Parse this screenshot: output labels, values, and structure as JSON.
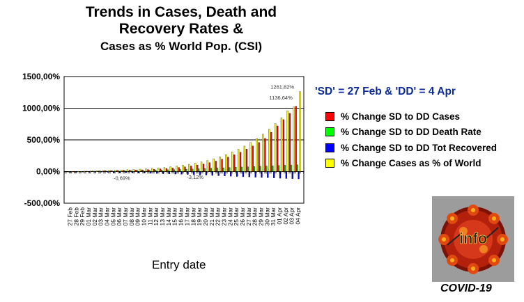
{
  "chart_data": {
    "type": "bar",
    "title": "Trends in Cases, Death and",
    "title_line2": "Recovery Rates &",
    "subtitle": "Cases as % World Pop. (CSI)",
    "xlabel": "Entry date",
    "ylabel": "",
    "ylim": [
      -500,
      1500
    ],
    "yticks": [
      -500,
      0,
      500,
      1000,
      1500
    ],
    "ytick_labels": [
      "-500,00%",
      "0,00%",
      "500,00%",
      "1000,00%",
      "1500,00%"
    ],
    "grid": true,
    "legend_position": "right",
    "legend_title": "'SD' = 27 Feb & 'DD' = 4 Apr",
    "categories": [
      "27 Feb",
      "28 Feb",
      "29 Feb",
      "01 Mar",
      "02 Mar",
      "03 Mar",
      "04 Mar",
      "05 Mar",
      "06 Mar",
      "07 Mar",
      "08 Mar",
      "09 Mar",
      "10 Mar",
      "11 Mar",
      "12 Mar",
      "13 Mar",
      "14 Mar",
      "15 Mar",
      "16 Mar",
      "17 Mar",
      "18 Mar",
      "19 Mar",
      "20 Mar",
      "21 Mar",
      "22 Mar",
      "23 Mar",
      "24 Mar",
      "25 Mar",
      "26 Mar",
      "27 Mar",
      "28 Mar",
      "29 Mar",
      "30 Mar",
      "31 Mar",
      "01 Apr",
      "02 Apr",
      "03 Apr",
      "04 Apr"
    ],
    "series": [
      {
        "name": "% Change SD to DD Cases",
        "color": "#ff0000",
        "values": [
          0,
          2,
          4,
          6,
          8,
          10,
          13,
          15,
          17,
          19,
          22,
          25,
          28,
          32,
          36,
          42,
          48,
          56,
          65,
          75,
          88,
          102,
          118,
          140,
          165,
          195,
          228,
          265,
          305,
          355,
          405,
          460,
          525,
          620,
          720,
          820,
          920,
          1030
        ]
      },
      {
        "name": "% Change SD to DD Death Rate",
        "color": "#00c800",
        "values": [
          0,
          -0.69,
          3,
          5,
          6,
          8,
          9,
          10,
          12,
          14,
          16,
          18,
          20,
          22,
          24,
          26,
          28,
          30,
          33,
          36,
          40,
          44,
          48,
          52,
          56,
          60,
          64,
          68,
          72,
          76,
          80,
          84,
          88,
          92,
          96,
          100,
          104,
          108
        ]
      },
      {
        "name": "% Change SD to DD Tot Recovered",
        "color": "#0000ff",
        "values": [
          0,
          -2,
          -4,
          -6,
          -8,
          -10,
          -12,
          -14,
          -16,
          -18,
          -20,
          -22,
          -25,
          -28,
          -31,
          -34,
          -37,
          -40,
          -43,
          -46,
          -50,
          -54,
          -58,
          -62,
          -66,
          -70,
          -74,
          -78,
          -82,
          -86,
          -90,
          -94,
          -98,
          -102,
          -106,
          -110,
          -113,
          -116
        ]
      },
      {
        "name": "% Change Cases as % of World",
        "color": "#ffff00",
        "values": [
          0,
          3,
          6,
          9,
          12,
          15,
          18,
          21,
          25,
          29,
          33,
          38,
          43,
          50,
          57,
          65,
          75,
          87,
          100,
          115,
          132,
          152,
          175,
          202,
          232,
          268,
          308,
          352,
          402,
          458,
          520,
          590,
          668,
          755,
          850,
          960,
          1020,
          1261.82
        ]
      }
    ],
    "data_labels": [
      "1261,82%",
      "1136,64%",
      "-0,69%",
      "-3,12%"
    ]
  },
  "legend_items": [
    {
      "label": "% Change SD to DD Cases",
      "color": "#ff0000"
    },
    {
      "label": "% Change SD to DD Death Rate",
      "color": "#00ff00"
    },
    {
      "label": "% Change SD to DD Tot Recovered",
      "color": "#0000ff"
    },
    {
      "label": "% Change Cases as % of World",
      "color": "#ffff00"
    }
  ],
  "logo": {
    "text": "info",
    "caption": "COVID-19",
    "icon": "virus-icon"
  }
}
